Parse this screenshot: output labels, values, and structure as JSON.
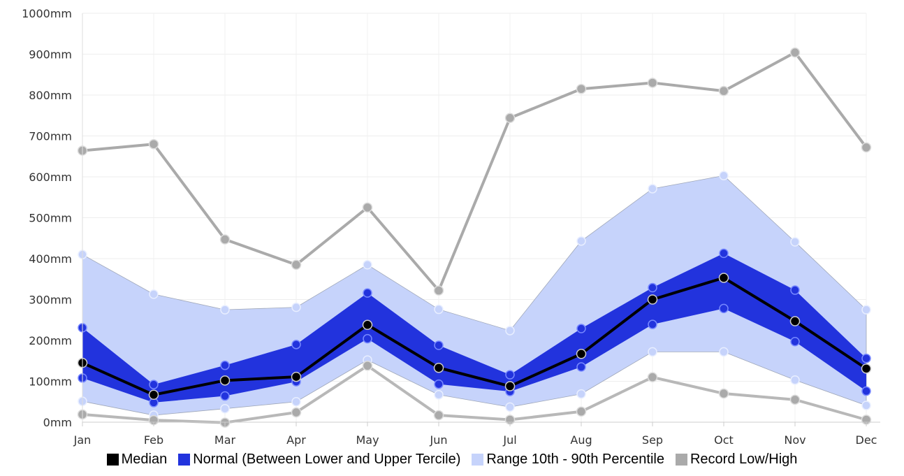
{
  "chart_data": {
    "type": "area",
    "categories": [
      "Jan",
      "Feb",
      "Mar",
      "Apr",
      "May",
      "Jun",
      "Jul",
      "Aug",
      "Sep",
      "Oct",
      "Nov",
      "Dec"
    ],
    "y_tick_labels": [
      "0mm",
      "100mm",
      "200mm",
      "300mm",
      "400mm",
      "500mm",
      "600mm",
      "700mm",
      "800mm",
      "900mm",
      "1000mm"
    ],
    "ylim": [
      0,
      1000
    ],
    "y_unit": "mm",
    "grid": true,
    "legend_position": "bottom",
    "series": [
      {
        "name": "Median",
        "role": "median",
        "color": "#000000",
        "values": [
          145,
          67,
          102,
          111,
          238,
          133,
          88,
          167,
          300,
          353,
          247,
          131
        ]
      },
      {
        "name": "Normal (Between Lower and Upper Tercile)",
        "role": "band",
        "color": "#2233dd",
        "lower": [
          108,
          48,
          64,
          99,
          204,
          93,
          75,
          135,
          239,
          278,
          197,
          76
        ],
        "upper": [
          231,
          92,
          139,
          190,
          316,
          188,
          116,
          229,
          329,
          413,
          323,
          156
        ]
      },
      {
        "name": "Range 10th - 90th Percentile",
        "role": "band",
        "color": "#c6d3fb",
        "lower": [
          51,
          17,
          33,
          50,
          152,
          67,
          37,
          69,
          172,
          172,
          103,
          41
        ],
        "upper": [
          410,
          313,
          275,
          281,
          385,
          276,
          224,
          443,
          571,
          603,
          441,
          275
        ]
      },
      {
        "name": "Record Low/High",
        "role": "band",
        "color": "#aaaaaa",
        "lower": [
          19,
          5,
          -1,
          24,
          138,
          17,
          6,
          26,
          110,
          70,
          55,
          6
        ],
        "upper": [
          664,
          680,
          447,
          385,
          525,
          322,
          744,
          815,
          830,
          810,
          904,
          672
        ]
      }
    ]
  },
  "legend": {
    "items": [
      {
        "label": "Median",
        "color": "#000000"
      },
      {
        "label": "Normal (Between Lower and Upper Tercile)",
        "color": "#2233dd"
      },
      {
        "label": "Range 10th - 90th Percentile",
        "color": "#c6d3fb"
      },
      {
        "label": "Record Low/High",
        "color": "#aaaaaa"
      }
    ]
  }
}
